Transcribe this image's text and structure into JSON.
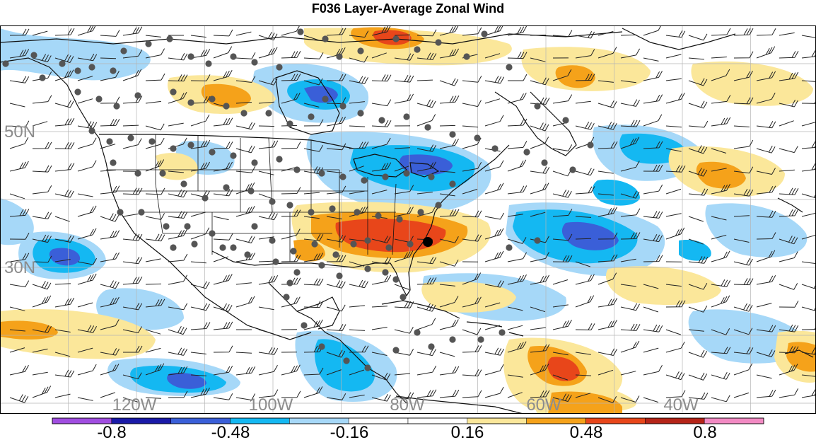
{
  "title": "F036 Layer-Average Zonal Wind",
  "map": {
    "lat_labels": [
      "50N",
      "30N"
    ],
    "lon_labels": [
      "120W",
      "100W",
      "80W",
      "60W",
      "40W"
    ]
  },
  "colorbar": {
    "labels": [
      "-0.8",
      "-0.48",
      "-0.16",
      "0.16",
      "0.48",
      "0.8"
    ],
    "colors": [
      "#a04de0",
      "#1a1aa8",
      "#3a5fd8",
      "#14b8f2",
      "#a6d8f8",
      "#ffffff",
      "#ffffff",
      "#fbe79a",
      "#f5a21a",
      "#e8461a",
      "#b52418",
      "#f28ac3"
    ]
  },
  "palette": {
    "lightblue": "#a6d8f8",
    "cyan": "#14b8f2",
    "blue": "#3a5fd8",
    "yellow": "#fbe79a",
    "orange": "#f5a21a",
    "red": "#e8461a",
    "coast": "#111111",
    "station": "#555555",
    "grid": "#b5b5b5",
    "axis_label": "#8c8c8c"
  }
}
